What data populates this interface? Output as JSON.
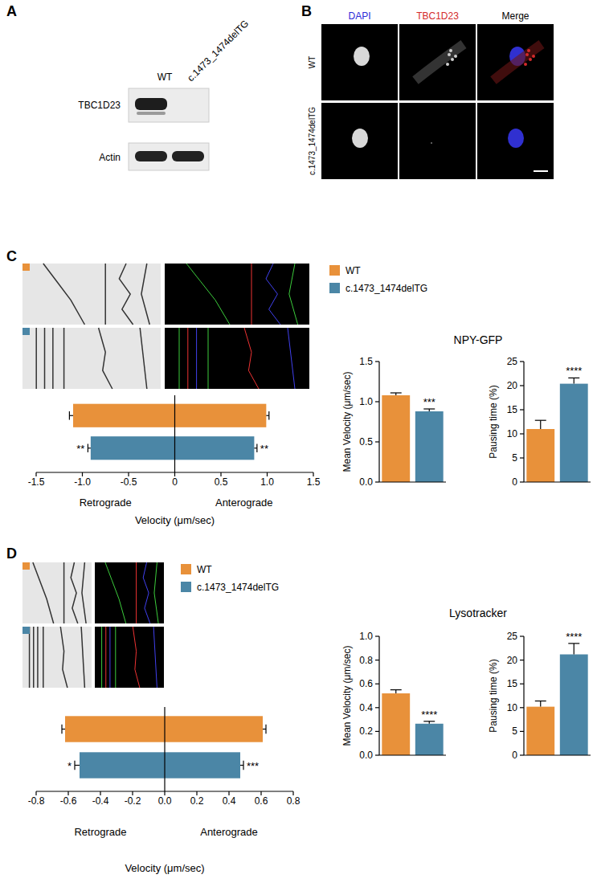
{
  "panels": [
    {
      "label": "A",
      "lanes": [
        "WT",
        "c.1473_1474delTG"
      ],
      "bands": [
        "TBC1D23",
        "Actin"
      ]
    },
    {
      "label": "B",
      "channels": [
        "DAPI",
        "TBC1D23",
        "Merge"
      ],
      "rows": [
        "WT",
        "c.1473_1474delTG"
      ]
    },
    {
      "label": "C",
      "title": "NPY-GFP"
    },
    {
      "label": "D",
      "title": "Lysotracker"
    }
  ],
  "chart_data": [
    {
      "type": "bar",
      "orientation": "horizontal",
      "categories": [
        "Retrograde",
        "Anterograde"
      ],
      "series": [
        {
          "name": "WT",
          "color": "#e8913a",
          "values": [
            -1.1,
            0.99
          ],
          "errors": [
            0.04,
            0.03
          ],
          "significance": [
            null,
            null
          ]
        },
        {
          "name": "c.1473_1474delTG",
          "color": "#4b86a6",
          "values": [
            -0.91,
            0.86
          ],
          "errors": [
            0.03,
            0.03
          ],
          "significance": [
            "**",
            "**"
          ]
        }
      ],
      "x_label": "Velocity (μm/sec)",
      "xlim": [
        -1.5,
        1.5
      ],
      "xticks": [
        -1.5,
        {
          "value": -1,
          "label": "-1.0"
        },
        -0.5,
        0,
        0.5,
        {
          "value": 1,
          "label": "1.0"
        },
        1.5
      ]
    },
    {
      "type": "bar",
      "categories": [
        null,
        null
      ],
      "values": [
        1.08,
        0.88
      ],
      "errors": [
        0.03,
        0.03
      ],
      "colors": [
        "#e8913a",
        "#4b86a6"
      ],
      "significance": [
        null,
        "***"
      ],
      "y_label": "Mean Velocity (μm/sec)",
      "ylim": [
        0,
        1.5
      ],
      "yticks": [
        {
          "value": 0,
          "label": "0.0"
        },
        0.5,
        {
          "value": 1,
          "label": "1.0"
        },
        1.5
      ]
    },
    {
      "type": "bar",
      "categories": [
        null,
        null
      ],
      "values": [
        11,
        20.4
      ],
      "errors": [
        1.8,
        1.2
      ],
      "colors": [
        "#e8913a",
        "#4b86a6"
      ],
      "significance": [
        null,
        "****"
      ],
      "y_label": "Pausing time (%)",
      "ylim": [
        0,
        25
      ],
      "yticks": [
        0,
        5,
        10,
        15,
        20,
        25
      ]
    },
    {
      "type": "bar",
      "orientation": "horizontal",
      "categories": [
        "Retrograde",
        "Anterograde"
      ],
      "series": [
        {
          "name": "WT",
          "color": "#e8913a",
          "values": [
            -0.62,
            0.61
          ],
          "errors": [
            0.02,
            0.02
          ],
          "significance": [
            null,
            null
          ]
        },
        {
          "name": "c.1473_1474delTG",
          "color": "#4b86a6",
          "values": [
            -0.53,
            0.47
          ],
          "errors": [
            0.03,
            0.02
          ],
          "significance": [
            "*",
            "***"
          ]
        }
      ],
      "x_label": "Velocity (μm/sec)",
      "xlim": [
        -0.8,
        0.8
      ],
      "xticks": [
        -0.8,
        -0.6,
        -0.4,
        -0.2,
        {
          "value": 0,
          "label": "0.0"
        },
        0.2,
        0.4,
        0.6,
        0.8
      ]
    },
    {
      "type": "bar",
      "categories": [
        null,
        null
      ],
      "values": [
        0.52,
        0.265
      ],
      "errors": [
        0.03,
        0.02
      ],
      "colors": [
        "#e8913a",
        "#4b86a6"
      ],
      "significance": [
        null,
        "****"
      ],
      "y_label": "Mean Velocity (μm/sec)",
      "ylim": [
        0,
        1
      ],
      "yticks": [
        {
          "value": 0,
          "label": "0.0"
        },
        0.2,
        0.4,
        0.6,
        0.8,
        {
          "value": 1,
          "label": "1.0"
        }
      ]
    },
    {
      "type": "bar",
      "categories": [
        null,
        null
      ],
      "values": [
        10.2,
        21.2
      ],
      "errors": [
        1.2,
        2.3
      ],
      "colors": [
        "#e8913a",
        "#4b86a6"
      ],
      "significance": [
        null,
        "****"
      ],
      "y_label": "Pausing time (%)",
      "ylim": [
        0,
        25
      ],
      "yticks": [
        0,
        5,
        10,
        15,
        20,
        25
      ]
    }
  ]
}
